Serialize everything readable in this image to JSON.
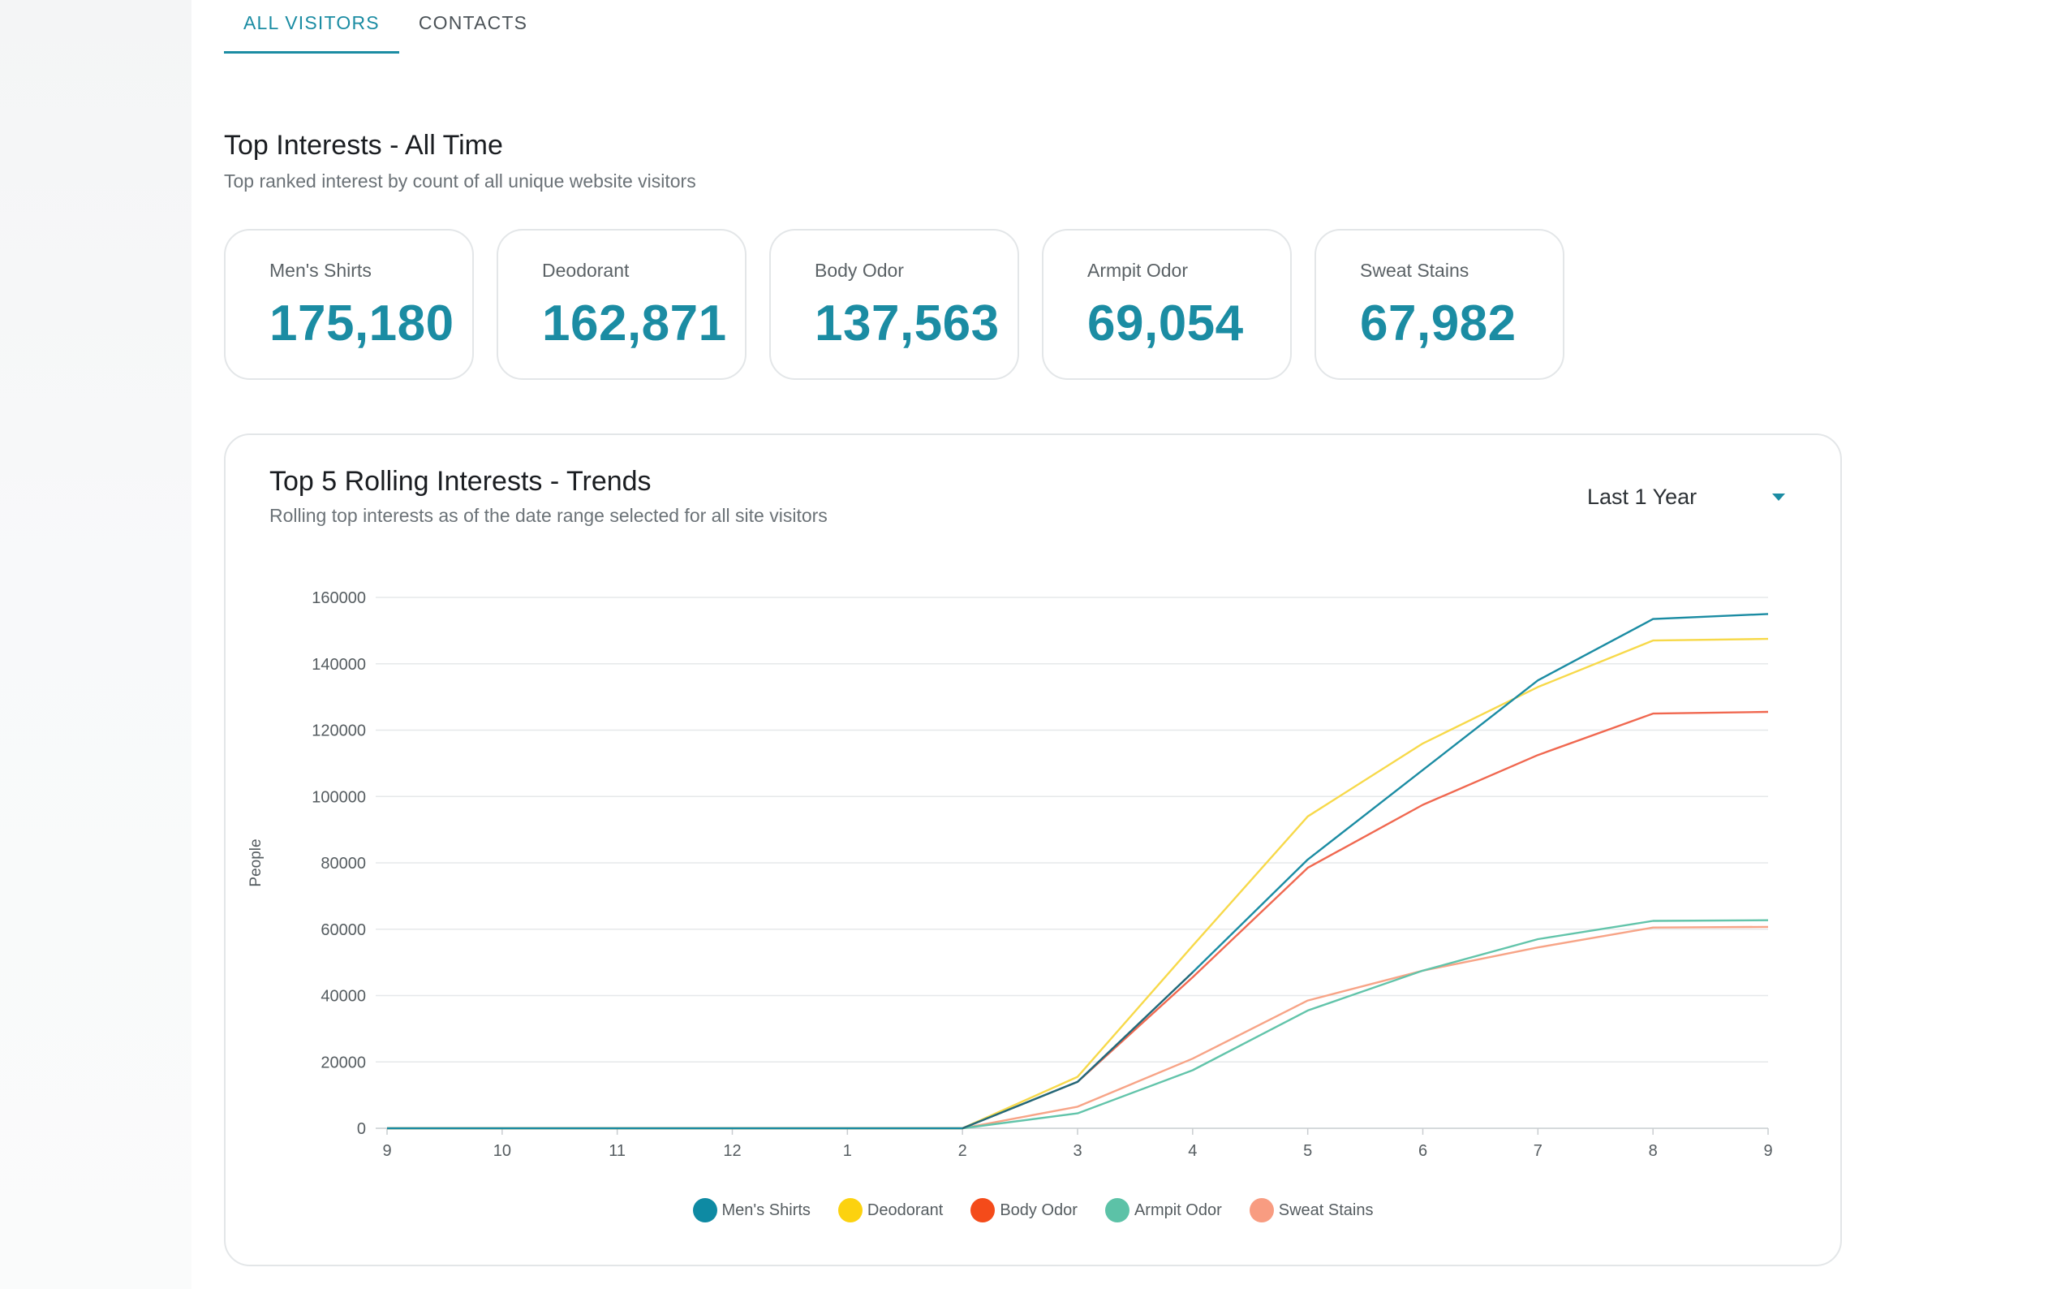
{
  "tabs": [
    {
      "label": "ALL VISITORS",
      "active": true
    },
    {
      "label": "CONTACTS",
      "active": false
    }
  ],
  "top_interests": {
    "title": "Top Interests - All Time",
    "subtitle": "Top ranked interest by count of all unique website visitors",
    "cards": [
      {
        "label": "Men's Shirts",
        "value": "175,180"
      },
      {
        "label": "Deodorant",
        "value": "162,871"
      },
      {
        "label": "Body Odor",
        "value": "137,563"
      },
      {
        "label": "Armpit Odor",
        "value": "69,054"
      },
      {
        "label": "Sweat Stains",
        "value": "67,982"
      }
    ]
  },
  "trends": {
    "title": "Top 5 Rolling Interests - Trends",
    "subtitle": "Rolling top interests as of the date range selected for all site visitors",
    "range_select": {
      "value": "Last 1 Year"
    }
  },
  "colors": {
    "accent": "#1b8ca3",
    "grid": "#e6e8ea",
    "axis_text": "#555c60"
  },
  "chart_data": {
    "type": "line",
    "x": [
      "9",
      "10",
      "11",
      "12",
      "1",
      "2",
      "3",
      "4",
      "5",
      "6",
      "7",
      "8",
      "9"
    ],
    "ylabel": "People",
    "xlabel": "",
    "ylim": [
      0,
      160000
    ],
    "yticks": [
      0,
      20000,
      40000,
      60000,
      80000,
      100000,
      120000,
      140000,
      160000
    ],
    "grid": true,
    "legend_position": "bottom",
    "series": [
      {
        "name": "Men's Shirts",
        "color": "#1b8ca3",
        "legend_color": "#0e8aa3",
        "values": [
          0,
          0,
          0,
          0,
          0,
          0,
          14000,
          47000,
          81000,
          108000,
          135000,
          153500,
          155000
        ]
      },
      {
        "name": "Deodorant",
        "color": "#f7d94a",
        "legend_color": "#fcd20f",
        "values": [
          0,
          0,
          0,
          0,
          0,
          0,
          15500,
          55000,
          94000,
          116000,
          133000,
          147000,
          147500
        ]
      },
      {
        "name": "Body Odor",
        "color": "#f06850",
        "legend_color": "#f44b1a",
        "values": [
          0,
          0,
          0,
          0,
          0,
          0,
          14000,
          45500,
          78500,
          97500,
          112500,
          125000,
          125500
        ]
      },
      {
        "name": "Armpit Odor",
        "color": "#62c4aa",
        "legend_color": "#5cc2a7",
        "values": [
          0,
          0,
          0,
          0,
          0,
          0,
          4500,
          17500,
          35500,
          47500,
          57000,
          62500,
          62700
        ]
      },
      {
        "name": "Sweat Stains",
        "color": "#f7a487",
        "legend_color": "#f89c81",
        "values": [
          0,
          0,
          0,
          0,
          0,
          0,
          6500,
          21000,
          38500,
          47500,
          54500,
          60500,
          60700
        ]
      }
    ]
  }
}
